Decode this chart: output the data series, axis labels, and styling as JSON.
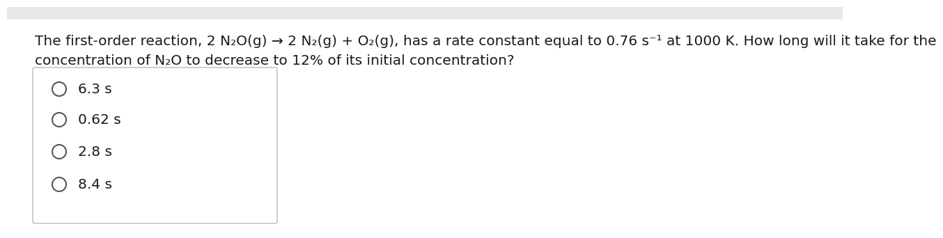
{
  "background_color": "#ffffff",
  "content_bg": "#ffffff",
  "question_line1": "The first-order reaction, 2 N₂O(g) → 2 N₂(g) + O₂(g), has a rate constant equal to 0.76 s⁻¹ at 1000 K. How long will it take for the",
  "question_line2": "concentration of N₂O to decrease to 12% of its initial concentration?",
  "choices": [
    "6.3 s",
    "0.62 s",
    "2.8 s",
    "8.4 s"
  ],
  "text_color": "#1a1a1a",
  "font_size_question": 14.5,
  "font_size_choices": 14.5,
  "circle_color": "#555555",
  "box_edge_color": "#bbbbbb"
}
